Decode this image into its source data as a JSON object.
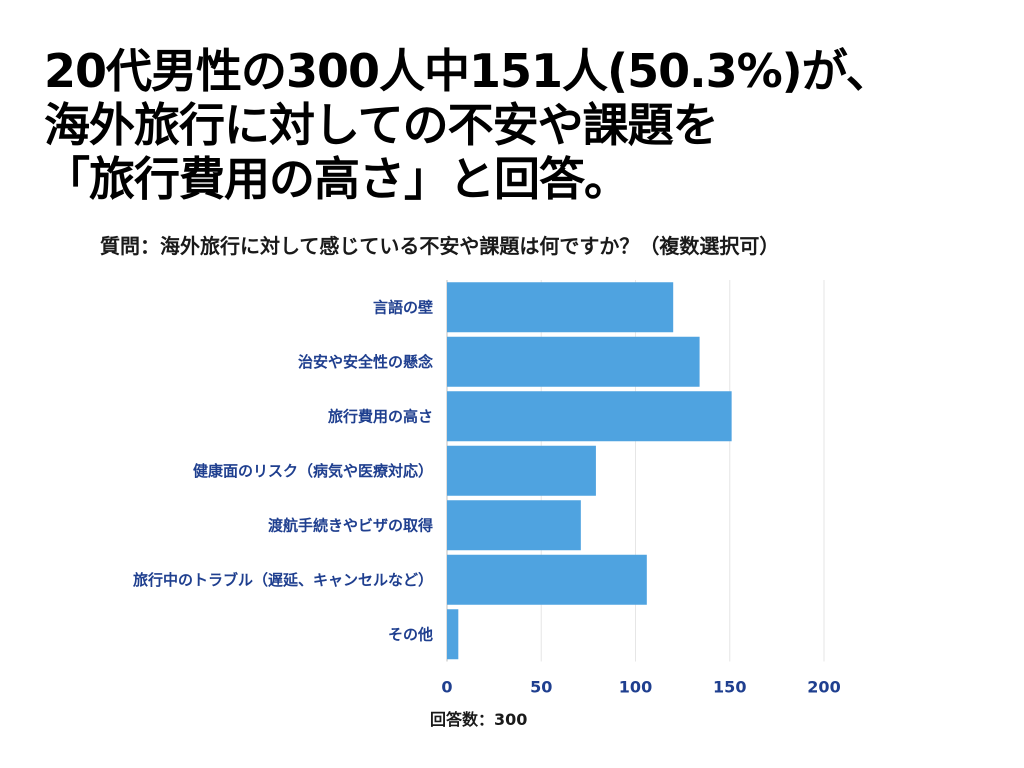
{
  "headline": {
    "line1": "20代男性の300人中151人(50.3%)が、",
    "line2": "海外旅行に対しての不安や課題を",
    "line3": "「旅行費用の高さ」と回答。"
  },
  "chart_data": {
    "type": "bar",
    "orientation": "horizontal",
    "title": "質問：海外旅行に対して感じている不安や課題は何ですか？（複数選択可）",
    "categories": [
      "言語の壁",
      "治安や安全性の懸念",
      "旅行費用の高さ",
      "健康面のリスク（病気や医療対応）",
      "渡航手続きやビザの取得",
      "旅行中のトラブル（遅延、キャンセルなど）",
      "その他"
    ],
    "values": [
      120,
      134,
      151,
      79,
      71,
      106,
      6
    ],
    "xlim": [
      0,
      200
    ],
    "xticks": [
      0,
      50,
      100,
      150,
      200
    ],
    "grid": true,
    "bar_color": "#4fa3e0",
    "label_color": "#1f3f8f",
    "footnote": "回答数：300"
  }
}
